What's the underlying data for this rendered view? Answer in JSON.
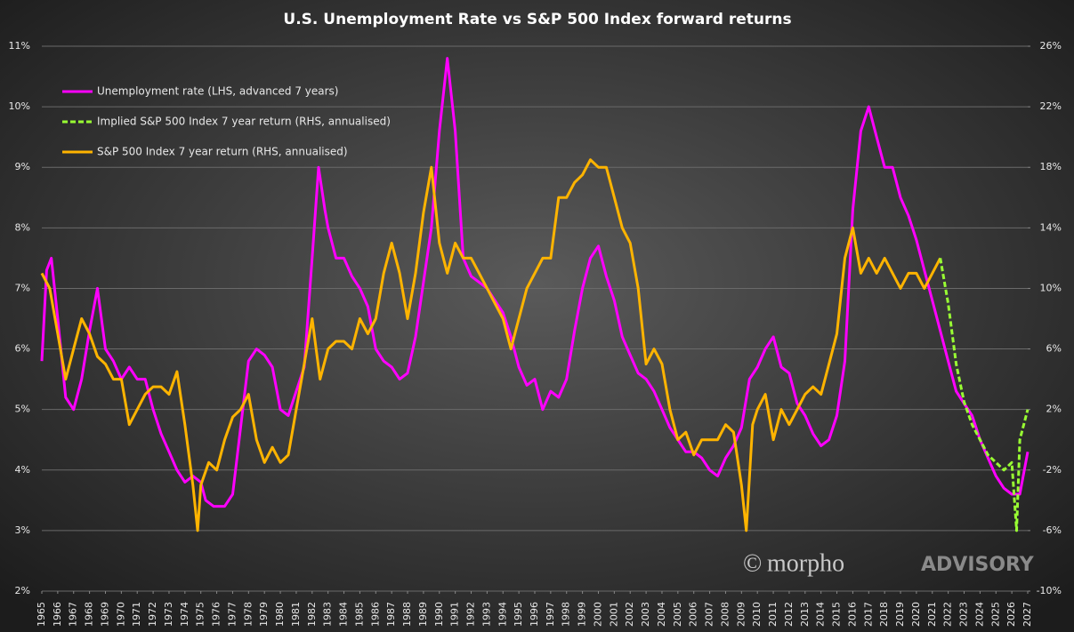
{
  "chart_data": {
    "type": "line",
    "title": "U.S. Unemployment  Rate vs S&P 500 Index forward  returns",
    "watermark": [
      "©",
      "morpho",
      "ADVISORY"
    ],
    "xlim": [
      1965,
      2027
    ],
    "xticks": [
      1965,
      1966,
      1967,
      1968,
      1969,
      1970,
      1971,
      1972,
      1973,
      1974,
      1975,
      1976,
      1977,
      1978,
      1979,
      1980,
      1981,
      1982,
      1983,
      1984,
      1985,
      1986,
      1987,
      1988,
      1989,
      1990,
      1991,
      1992,
      1993,
      1994,
      1995,
      1996,
      1997,
      1998,
      1999,
      2000,
      2001,
      2002,
      2003,
      2004,
      2005,
      2006,
      2007,
      2008,
      2009,
      2010,
      2011,
      2012,
      2013,
      2014,
      2015,
      2016,
      2017,
      2018,
      2019,
      2020,
      2021,
      2022,
      2023,
      2024,
      2025,
      2026,
      2027
    ],
    "ylim": [
      2,
      11
    ],
    "yticks": [
      {
        "value": 2,
        "label": "2%"
      },
      {
        "value": 3,
        "label": "3%"
      },
      {
        "value": 4,
        "label": "4%"
      },
      {
        "value": 5,
        "label": "5%"
      },
      {
        "value": 6,
        "label": "6%"
      },
      {
        "value": 7,
        "label": "7%"
      },
      {
        "value": 8,
        "label": "8%"
      },
      {
        "value": 9,
        "label": "9%"
      },
      {
        "value": 10,
        "label": "10%"
      },
      {
        "value": 11,
        "label": "11%"
      }
    ],
    "y2lim": [
      -10,
      26
    ],
    "y2ticks": [
      {
        "value": -10,
        "label": "-10%"
      },
      {
        "value": -6,
        "label": "-6%"
      },
      {
        "value": -2,
        "label": "-2%"
      },
      {
        "value": 2,
        "label": "2%"
      },
      {
        "value": 6,
        "label": "6%"
      },
      {
        "value": 10,
        "label": "10%"
      },
      {
        "value": 14,
        "label": "14%"
      },
      {
        "value": 18,
        "label": "18%"
      },
      {
        "value": 22,
        "label": "22%"
      },
      {
        "value": 26,
        "label": "26%"
      }
    ],
    "grid": true,
    "series": [
      {
        "name": "Unemployment rate (LHS, advanced 7 years)",
        "color": "#ff00ff",
        "dashed": false,
        "axis": "y",
        "x": [
          1965,
          1965.3,
          1965.6,
          1966,
          1966.5,
          1967,
          1967.5,
          1968,
          1968.5,
          1969,
          1969.5,
          1970,
          1970.5,
          1971,
          1971.5,
          1972,
          1972.5,
          1973,
          1973.5,
          1974,
          1974.5,
          1975,
          1975.3,
          1975.8,
          1976.5,
          1977,
          1977.5,
          1978,
          1978.5,
          1979,
          1979.5,
          1980,
          1980.5,
          1981,
          1981.5,
          1982,
          1982.4,
          1982.8,
          1983,
          1983.5,
          1984,
          1984.5,
          1985,
          1985.5,
          1986,
          1986.5,
          1987,
          1987.5,
          1988,
          1988.5,
          1989,
          1989.5,
          1990,
          1990.5,
          1991,
          1991.5,
          1992,
          1992.5,
          1993,
          1993.5,
          1994,
          1994.5,
          1995,
          1995.5,
          1996,
          1996.5,
          1997,
          1997.5,
          1998,
          1998.5,
          1999,
          1999.5,
          2000,
          2000.5,
          2001,
          2001.5,
          2002,
          2002.5,
          2003,
          2003.5,
          2004,
          2004.5,
          2005,
          2005.5,
          2006,
          2006.5,
          2007,
          2007.5,
          2008,
          2008.5,
          2009,
          2009.5,
          2010,
          2010.5,
          2011,
          2011.5,
          2012,
          2012.5,
          2013,
          2013.5,
          2014,
          2014.5,
          2015,
          2015.5,
          2016,
          2016.5,
          2017,
          2017.5,
          2018,
          2018.5,
          2019,
          2019.5,
          2020,
          2020.5,
          2021,
          2021.5,
          2022,
          2022.5,
          2023,
          2023.5,
          2024,
          2024.5,
          2025,
          2025.5,
          2026,
          2026.5,
          2027
        ],
        "values": [
          5.8,
          7.3,
          7.5,
          6.5,
          5.2,
          5.0,
          5.5,
          6.3,
          7.0,
          6.0,
          5.8,
          5.5,
          5.7,
          5.5,
          5.5,
          5.0,
          4.6,
          4.3,
          4.0,
          3.8,
          3.9,
          3.8,
          3.5,
          3.4,
          3.4,
          3.6,
          4.7,
          5.8,
          6.0,
          5.9,
          5.7,
          5.0,
          4.9,
          5.3,
          5.7,
          7.5,
          9.0,
          8.3,
          8.0,
          7.5,
          7.5,
          7.2,
          7.0,
          6.7,
          6.0,
          5.8,
          5.7,
          5.5,
          5.6,
          6.2,
          7.1,
          8.0,
          9.6,
          10.8,
          9.6,
          7.5,
          7.2,
          7.1,
          7.0,
          6.8,
          6.6,
          6.2,
          5.7,
          5.4,
          5.5,
          5.0,
          5.3,
          5.2,
          5.5,
          6.3,
          7.0,
          7.5,
          7.7,
          7.2,
          6.8,
          6.2,
          5.9,
          5.6,
          5.5,
          5.3,
          5.0,
          4.7,
          4.5,
          4.3,
          4.3,
          4.2,
          4.0,
          3.9,
          4.2,
          4.4,
          4.7,
          5.5,
          5.7,
          6.0,
          6.2,
          5.7,
          5.6,
          5.1,
          4.9,
          4.6,
          4.4,
          4.5,
          4.9,
          5.8,
          8.3,
          9.6,
          10.0,
          9.5,
          9.0,
          9.0,
          8.5,
          8.2,
          7.8,
          7.3,
          6.8,
          6.3,
          5.8,
          5.3,
          5.1,
          4.9,
          4.5,
          4.2,
          3.9,
          3.7,
          3.6,
          3.6,
          4.3
        ]
      },
      {
        "name": "Implied S&P 500 Index 7 year return (RHS, annualised)",
        "color": "#99ff33",
        "dashed": true,
        "axis": "y2",
        "x": [
          2021.5,
          2022,
          2022.5,
          2023,
          2023.5,
          2024,
          2024.5,
          2025,
          2025.5,
          2026,
          2026.3,
          2026.5,
          2027
        ],
        "values": [
          12,
          9,
          5,
          2.5,
          1,
          0,
          -1,
          -1.5,
          -2,
          -1.5,
          -6,
          0,
          2
        ]
      },
      {
        "name": "S&P 500 Index 7 year return (RHS, annualised)",
        "color": "#ffb400",
        "dashed": false,
        "axis": "y2",
        "x": [
          1965,
          1965.5,
          1966,
          1966.5,
          1967,
          1967.5,
          1968,
          1968.5,
          1969,
          1969.5,
          1970,
          1970.5,
          1971,
          1971.5,
          1972,
          1972.5,
          1973,
          1973.5,
          1974,
          1974.5,
          1974.8,
          1975,
          1975.5,
          1976,
          1976.5,
          1977,
          1977.5,
          1978,
          1978.5,
          1979,
          1979.5,
          1980,
          1980.5,
          1981,
          1981.5,
          1982,
          1982.5,
          1983,
          1983.5,
          1984,
          1984.5,
          1985,
          1985.5,
          1986,
          1986.5,
          1987,
          1987.5,
          1988,
          1988.5,
          1989,
          1989.5,
          1990,
          1990.5,
          1991,
          1991.5,
          1992,
          1992.5,
          1993,
          1993.5,
          1994,
          1994.5,
          1995,
          1995.5,
          1996,
          1996.5,
          1997,
          1997.5,
          1998,
          1998.5,
          1999,
          1999.5,
          2000,
          2000.5,
          2001,
          2001.5,
          2002,
          2002.5,
          2003,
          2003.5,
          2004,
          2004.5,
          2005,
          2005.5,
          2006,
          2006.5,
          2007,
          2007.5,
          2008,
          2008.5,
          2009,
          2009.3,
          2009.7,
          2010,
          2010.5,
          2011,
          2011.5,
          2012,
          2012.5,
          2013,
          2013.5,
          2014,
          2014.5,
          2015,
          2015.5,
          2016,
          2016.5,
          2017,
          2017.5,
          2018,
          2018.5,
          2019,
          2019.5,
          2020,
          2020.5,
          2021,
          2021.5
        ],
        "values": [
          11,
          10,
          7,
          4,
          6,
          8,
          7,
          5.5,
          5,
          4,
          4,
          1,
          2,
          3,
          3.5,
          3.5,
          3,
          4.5,
          1,
          -3,
          -6,
          -3,
          -1.5,
          -2,
          0,
          1.5,
          2,
          3,
          0,
          -1.5,
          -0.5,
          -1.5,
          -1,
          2,
          5,
          8,
          4,
          6,
          6.5,
          6.5,
          6,
          8,
          7,
          8,
          11,
          13,
          11,
          8,
          11,
          15,
          18,
          13,
          11,
          13,
          12,
          12,
          11,
          10,
          9,
          8,
          6,
          8,
          10,
          11,
          12,
          12,
          16,
          16,
          17,
          17.5,
          18.5,
          18,
          18,
          16,
          14,
          13,
          10,
          5,
          6,
          5,
          2,
          0,
          0.5,
          -1,
          0,
          0,
          0,
          1,
          0.5,
          -3,
          -6,
          1,
          2,
          3,
          0,
          2,
          1,
          2,
          3,
          3.5,
          3,
          5,
          7,
          12,
          14,
          11,
          12,
          11,
          12,
          11,
          10,
          11,
          11,
          10,
          11,
          12
        ]
      }
    ]
  }
}
